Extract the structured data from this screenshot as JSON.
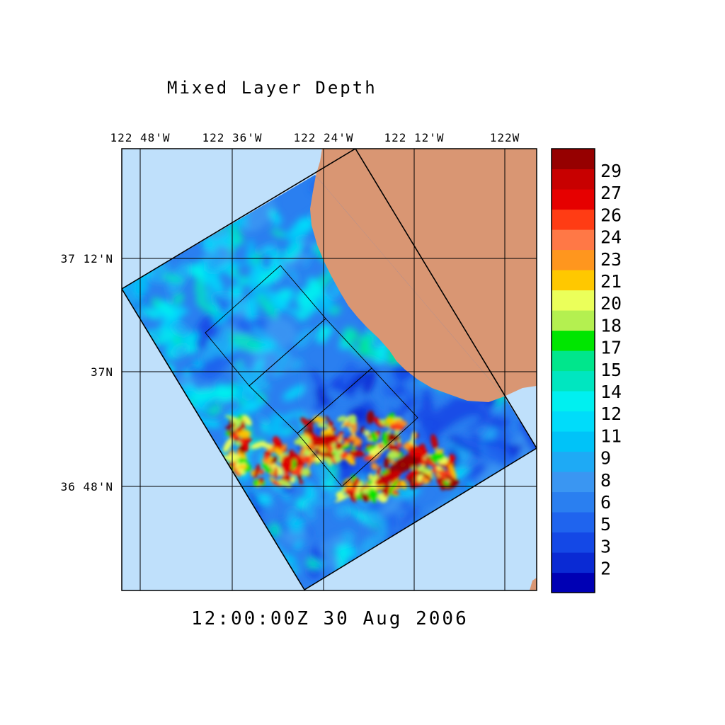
{
  "title": "Mixed Layer Depth",
  "timestamp": "12:00:00Z  30 Aug 2006",
  "lon_labels": [
    "122 48'W",
    "122 36'W",
    "122 24'W",
    "122 12'W",
    "122W"
  ],
  "lat_labels": [
    "37 12'N",
    "37N",
    "36 48'N"
  ],
  "colorbar": {
    "labels": [
      "29",
      "27",
      "26",
      "24",
      "23",
      "21",
      "20",
      "18",
      "17",
      "15",
      "14",
      "12",
      "11",
      "9",
      "8",
      "6",
      "5",
      "3",
      "2"
    ],
    "colors": [
      "#0000b4",
      "#0a2ad4",
      "#1448e6",
      "#1f64ee",
      "#2a7ff0",
      "#3a96f2",
      "#1eaaf5",
      "#00c3f8",
      "#00dcfa",
      "#00f0f0",
      "#00e6c0",
      "#00e68c",
      "#00e600",
      "#b4f050",
      "#ebff5a",
      "#ffc800",
      "#ff961e",
      "#ff7846",
      "#ff3c14",
      "#e60000",
      "#c80000",
      "#960000"
    ]
  },
  "colors": {
    "ocean": "#bfe0fb",
    "land": "#d99673",
    "domain_base": "#2a7ff0"
  }
}
